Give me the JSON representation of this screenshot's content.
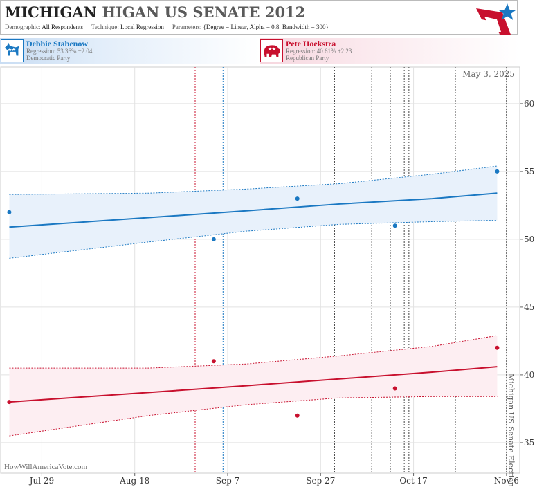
{
  "header": {
    "title_state": "MICHIGAN",
    "title_race": "HIGAN US SENATE 2012",
    "demographic_label": "Demographic:",
    "demographic_value": "All Respondents",
    "technique_label": "Technique:",
    "technique_value": "Local Regression",
    "parameters_label": "Parameters:",
    "parameters_value": "{Degree = Linear, Alpha = 0.8, Bandwidth = 300}"
  },
  "logo": {
    "icon": "star-chevron-logo-icon",
    "colors": [
      "#c8102e",
      "#1a78c2"
    ]
  },
  "candidates": [
    {
      "name": "Debbie Stabenow",
      "regression": "Regression: 53.36% ±2.04",
      "party": "Democratic Party",
      "icon": "donkey-icon",
      "color": "#1a78c2"
    },
    {
      "name": "Pete Hoekstra",
      "regression": "Regression: 40.61% ±2.23",
      "party": "Republican Party",
      "icon": "elephant-icon",
      "color": "#c8102e"
    }
  ],
  "chart_data": {
    "type": "line",
    "current_date": "May 3, 2025",
    "credit": "HowWillAmericaVote.com",
    "election_label": "Michigan US Senate Election",
    "election_date": "2012-11-06",
    "x_range": [
      "2012-07-20",
      "2012-11-09"
    ],
    "ylim": [
      32.75,
      62.75
    ],
    "y_ticks": [
      35,
      40,
      45,
      50,
      55,
      60
    ],
    "x_ticks": [
      {
        "date": "2012-07-29",
        "label": "Jul 29"
      },
      {
        "date": "2012-08-18",
        "label": "Aug 18"
      },
      {
        "date": "2012-09-07",
        "label": "Sep 7"
      },
      {
        "date": "2012-09-27",
        "label": "Sep 27"
      },
      {
        "date": "2012-10-17",
        "label": "Oct 17"
      },
      {
        "date": "2012-11-06",
        "label": "Nov 6"
      }
    ],
    "grid": true,
    "poll_markers": [
      {
        "date": "2012-08-31",
        "color": "#c8102e"
      },
      {
        "date": "2012-09-06",
        "color": "#1a78c2"
      },
      {
        "date": "2012-09-30",
        "color": "#444444"
      },
      {
        "date": "2012-10-08",
        "color": "#444444"
      },
      {
        "date": "2012-10-12",
        "color": "#444444"
      },
      {
        "date": "2012-10-15",
        "color": "#444444"
      },
      {
        "date": "2012-10-16",
        "color": "#444444"
      },
      {
        "date": "2012-10-26",
        "color": "#444444"
      }
    ],
    "series": [
      {
        "name": "Debbie Stabenow",
        "color": "#1a78c2",
        "band_fill": "#e8f1fb",
        "points": [
          {
            "date": "2012-07-22",
            "value": 52
          },
          {
            "date": "2012-09-04",
            "value": 50
          },
          {
            "date": "2012-09-22",
            "value": 53
          },
          {
            "date": "2012-10-13",
            "value": 51
          },
          {
            "date": "2012-11-04",
            "value": 55
          }
        ],
        "fit": [
          {
            "date": "2012-07-22",
            "value": 50.9,
            "lo": 48.6,
            "hi": 53.3
          },
          {
            "date": "2012-08-21",
            "value": 51.6,
            "lo": 49.8,
            "hi": 53.4
          },
          {
            "date": "2012-09-11",
            "value": 52.1,
            "lo": 50.6,
            "hi": 53.7
          },
          {
            "date": "2012-10-01",
            "value": 52.6,
            "lo": 51.1,
            "hi": 54.1
          },
          {
            "date": "2012-10-21",
            "value": 53.0,
            "lo": 51.3,
            "hi": 54.8
          },
          {
            "date": "2012-11-04",
            "value": 53.4,
            "lo": 51.4,
            "hi": 55.4
          }
        ]
      },
      {
        "name": "Pete Hoekstra",
        "color": "#c8102e",
        "band_fill": "#fdeef2",
        "points": [
          {
            "date": "2012-07-22",
            "value": 38
          },
          {
            "date": "2012-09-04",
            "value": 41
          },
          {
            "date": "2012-09-22",
            "value": 37
          },
          {
            "date": "2012-10-13",
            "value": 39
          },
          {
            "date": "2012-11-04",
            "value": 42
          }
        ],
        "fit": [
          {
            "date": "2012-07-22",
            "value": 38.0,
            "lo": 35.5,
            "hi": 40.5
          },
          {
            "date": "2012-08-21",
            "value": 38.7,
            "lo": 37.0,
            "hi": 40.5
          },
          {
            "date": "2012-09-11",
            "value": 39.2,
            "lo": 37.8,
            "hi": 40.8
          },
          {
            "date": "2012-10-01",
            "value": 39.7,
            "lo": 38.3,
            "hi": 41.4
          },
          {
            "date": "2012-10-21",
            "value": 40.2,
            "lo": 38.4,
            "hi": 42.1
          },
          {
            "date": "2012-11-04",
            "value": 40.6,
            "lo": 38.4,
            "hi": 42.9
          }
        ]
      }
    ]
  }
}
